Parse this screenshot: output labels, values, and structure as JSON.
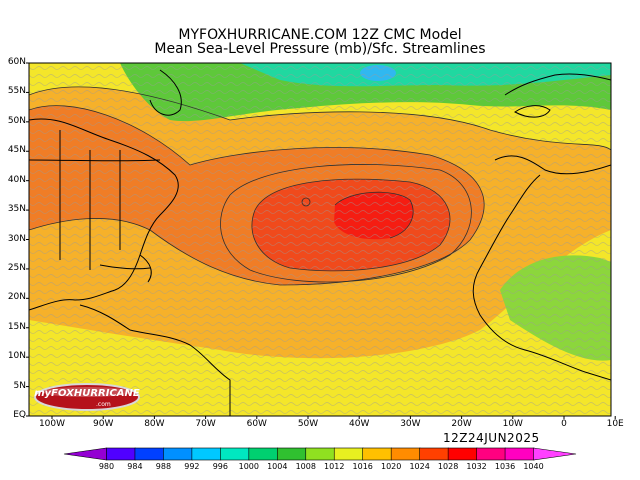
{
  "header": {
    "title_line1": "MYFOXHURRICANE.COM 12Z CMC Model",
    "title_line2": "Mean Sea-Level Pressure (mb)/Sfc. Streamlines"
  },
  "run_stamp": "12Z24JUN2025",
  "logo": {
    "text": "myFOXHURRICANE",
    "sub": ".com"
  },
  "axes": {
    "lat_labels": [
      "60N",
      "55N",
      "50N",
      "45N",
      "40N",
      "35N",
      "30N",
      "25N",
      "20N",
      "15N",
      "10N",
      "5N",
      "EQ"
    ],
    "lon_labels": [
      "100W",
      "90W",
      "80W",
      "70W",
      "60W",
      "50W",
      "40W",
      "30W",
      "20W",
      "10W",
      "0",
      "10E"
    ]
  },
  "colorbar": {
    "levels": [
      "980",
      "984",
      "988",
      "992",
      "996",
      "1000",
      "1004",
      "1008",
      "1012",
      "1016",
      "1020",
      "1024",
      "1028",
      "1032",
      "1036",
      "1040"
    ],
    "colors": [
      "#9400d3",
      "#5000ff",
      "#0040ff",
      "#0090ff",
      "#00c8ff",
      "#00e8c0",
      "#00d070",
      "#30c030",
      "#90e020",
      "#e8f020",
      "#ffc000",
      "#ff8c00",
      "#ff4000",
      "#ff0000",
      "#ff0080",
      "#ff00c0",
      "#ff40ff"
    ]
  },
  "map_colors": {
    "ocean_1016": "#f4e62a",
    "band_1020": "#f6b12a",
    "band_1024": "#f07d26",
    "band_1028": "#f04a1c",
    "core_1032": "#f51d12",
    "north_1008": "#5ec83a",
    "north_1004": "#20d8a0",
    "low_center": "#30b8f0",
    "africa_1012": "#8cd63c"
  }
}
